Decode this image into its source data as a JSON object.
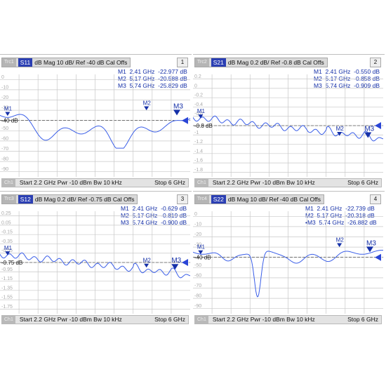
{
  "colors": {
    "trace": "#3a5ee8",
    "marker": "#1530a8",
    "grid": "#c8c8c8",
    "title_bar": "#d9d9d9",
    "channel_tag": "#2b3fb3"
  },
  "panels": [
    {
      "id": "1",
      "trace_tag": "Trc1",
      "channel_tag": "S11",
      "title": "dB Mag  10 dB/ Ref -40 dB  Cal Offs",
      "number": "1",
      "markers": [
        "M1  2.41 GHz  -22.977 dB",
        "M2  5.17 GHz  -20.588 dB",
        "M3  5.74 GHz  -25.829 dB"
      ],
      "marker_labels": [
        "M1",
        "M2",
        "M3"
      ],
      "ref_label": "-40 dB",
      "y_ticks": [
        "0",
        "-10",
        "-20",
        "-30",
        "-40 dB",
        "-50",
        "-60",
        "-70",
        "-80",
        "-90"
      ],
      "status_channel": "Ch1",
      "status": "Start  2.2 GHz   Pwr  -10 dBm  Bw  10 kHz",
      "stop": "Stop  6 GHz"
    },
    {
      "id": "2",
      "trace_tag": "Trc2",
      "channel_tag": "S21",
      "title": "dB Mag  0.2 dB/ Ref -0.8 dB  Cal Offs",
      "number": "2",
      "markers": [
        "M1  2.41 GHz  -0.550 dB",
        "M2  5.17 GHz  -0.858 dB",
        "M3  5.74 GHz  -0.909 dB"
      ],
      "marker_labels": [
        "M1",
        "M2",
        "M3"
      ],
      "ref_label": "-0.8 dB",
      "y_ticks": [
        "0.2",
        "0",
        "-0.2",
        "-0.4",
        "-0.6",
        "-0.8 dB",
        "-1",
        "-1.2",
        "-1.4",
        "-1.6",
        "-1.8"
      ],
      "status_channel": "Ch1",
      "status": "Start  2.2 GHz   Pwr  -10 dBm  Bw  10 kHz",
      "stop": "Stop  6 GHz"
    },
    {
      "id": "3",
      "trace_tag": "Trc3",
      "channel_tag": "S12",
      "title": "dB Mag  0.2 dB/ Ref -0.75 dB  Cal Offs",
      "number": "3",
      "markers": [
        "M1  2.41 GHz  -0.629 dB",
        "M2  5.17 GHz  -0.819 dB",
        "M3  5.74 GHz  -0.900 dB"
      ],
      "marker_labels": [
        "M1",
        "M2",
        "M3"
      ],
      "ref_label": "-0.75 dB",
      "y_ticks": [
        "0.25",
        "0.05",
        "-0.15",
        "-0.35",
        "-0.55",
        "-0.75 dB",
        "-0.95",
        "-1.15",
        "-1.35",
        "-1.55",
        "-1.75"
      ],
      "status_channel": "Ch1",
      "status": "Start  2.2 GHz   Pwr  -10 dBm  Bw  10 kHz",
      "stop": "Stop  6 GHz"
    },
    {
      "id": "4",
      "trace_tag": "Trc4",
      "channel_tag": "S22",
      "title": "dB Mag  10 dB/ Ref -40 dB  Cal Offs",
      "number": "4",
      "markers": [
        "M1  2.41 GHz  -22.739 dB",
        "M2  5.17 GHz  -20.318 dB",
        "•M3  5.74 GHz  -26.882 dB"
      ],
      "marker_labels": [
        "M1",
        "M2",
        "M3"
      ],
      "ref_label": "-40 dB",
      "y_ticks": [
        "0",
        "-10",
        "-20",
        "-30",
        "-40 dB",
        "-50",
        "-60",
        "-70",
        "-80",
        "-90"
      ],
      "status_channel": "Ch1",
      "status": "Start  2.2 GHz   Pwr  -10 dBm  Bw  10 kHz",
      "stop": "Stop  6 GHz"
    }
  ]
}
